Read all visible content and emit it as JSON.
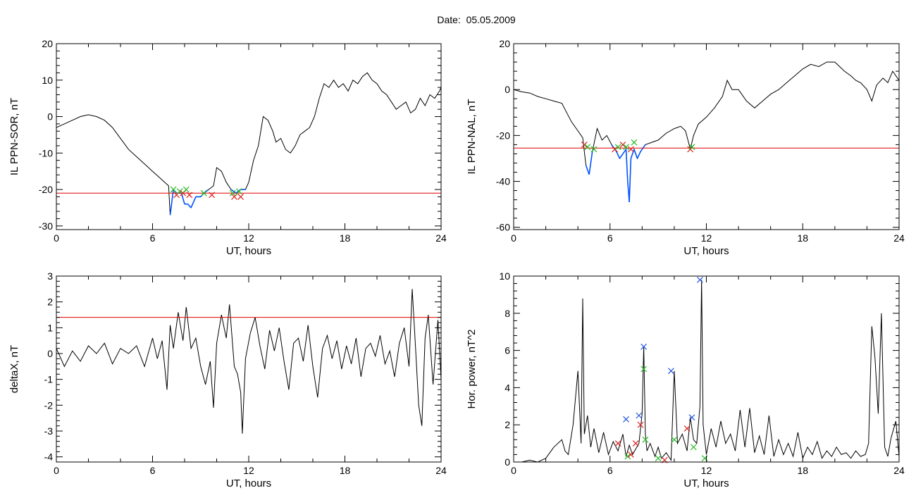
{
  "page_title": "Date:  05.05.2009",
  "colors": {
    "trace": "#000000",
    "highlight": "#0055ff",
    "threshold": "#e00000",
    "marker_green": "#22bb22",
    "marker_red": "#dd2222",
    "marker_blue": "#2255dd"
  },
  "chart_data": [
    {
      "id": "il-ppn-sor",
      "type": "line",
      "xlabel": "UT, hours",
      "ylabel": "IL PPN-SOR, nT",
      "xlim": [
        0,
        24
      ],
      "ylim": [
        -31,
        20
      ],
      "xticks": [
        0,
        6,
        12,
        18,
        24
      ],
      "yticks": [
        20,
        10,
        0,
        -10,
        -20,
        -30
      ],
      "threshold": -21,
      "highlight_below": -20,
      "series": [
        {
          "x": [
            0,
            0.5,
            1,
            1.5,
            2,
            2.5,
            3,
            3.5,
            4,
            4.5,
            5,
            5.5,
            6,
            6.5,
            7,
            7.1,
            7.3,
            7.5,
            7.8,
            8,
            8.2,
            8.4,
            8.7,
            9,
            9.2,
            9.5,
            9.8,
            10,
            10.3,
            10.6,
            10.9,
            11.2,
            11.5,
            11.8,
            12,
            12.3,
            12.6,
            12.9,
            13.2,
            13.5,
            13.7,
            14,
            14.3,
            14.6,
            14.9,
            15.2,
            15.5,
            15.8,
            16.1,
            16.4,
            16.7,
            17,
            17.3,
            17.6,
            17.9,
            18.2,
            18.5,
            18.8,
            19.1,
            19.4,
            19.7,
            20,
            20.3,
            20.6,
            20.9,
            21.2,
            21.5,
            21.8,
            22.1,
            22.4,
            22.7,
            23,
            23.3,
            23.6,
            23.9,
            24
          ],
          "y": [
            -3,
            -2,
            -1,
            0,
            0.5,
            0,
            -1,
            -3,
            -6,
            -9,
            -11,
            -13,
            -15,
            -17,
            -19,
            -27,
            -20,
            -21,
            -21,
            -24,
            -24,
            -25,
            -22,
            -22,
            -21,
            -20,
            -19,
            -14,
            -15,
            -18,
            -20,
            -21,
            -20,
            -20,
            -18,
            -12,
            -8,
            0,
            -1,
            -4,
            -7,
            -6,
            -9,
            -10,
            -8,
            -5,
            -4,
            -3,
            0,
            5,
            9,
            8,
            10,
            8,
            9,
            7,
            10,
            9,
            11,
            12,
            10,
            9,
            7,
            6,
            4,
            2,
            3,
            4,
            1,
            2,
            5,
            3,
            6,
            5,
            7,
            8
          ]
        }
      ],
      "markers": [
        {
          "x": 7.3,
          "y": -20,
          "color": "green"
        },
        {
          "x": 7.5,
          "y": -21.5,
          "color": "red"
        },
        {
          "x": 7.7,
          "y": -20.5,
          "color": "green"
        },
        {
          "x": 7.9,
          "y": -21,
          "color": "red"
        },
        {
          "x": 8.1,
          "y": -20,
          "color": "green"
        },
        {
          "x": 8.3,
          "y": -21.5,
          "color": "red"
        },
        {
          "x": 9.2,
          "y": -21,
          "color": "green"
        },
        {
          "x": 9.7,
          "y": -21.5,
          "color": "red"
        },
        {
          "x": 11.0,
          "y": -21,
          "color": "green"
        },
        {
          "x": 11.1,
          "y": -22,
          "color": "red"
        },
        {
          "x": 11.4,
          "y": -20.5,
          "color": "green"
        },
        {
          "x": 11.5,
          "y": -22,
          "color": "red"
        }
      ]
    },
    {
      "id": "il-ppn-nal",
      "type": "line",
      "xlabel": "UT, hours",
      "ylabel": "IL PPN-NAL, nT",
      "xlim": [
        0,
        24
      ],
      "ylim": [
        -61,
        20
      ],
      "xticks": [
        0,
        6,
        12,
        18,
        24
      ],
      "yticks": [
        20,
        0,
        -20,
        -40,
        -60
      ],
      "threshold": -25.5,
      "highlight_below": -24,
      "series": [
        {
          "x": [
            0,
            0.5,
            1,
            1.5,
            2,
            2.5,
            3,
            3.3,
            3.6,
            4,
            4.3,
            4.5,
            4.7,
            4.9,
            5.2,
            5.5,
            5.8,
            6.1,
            6.4,
            6.6,
            6.8,
            7,
            7.1,
            7.2,
            7.3,
            7.5,
            7.7,
            7.9,
            8.2,
            8.6,
            9,
            9.5,
            10,
            10.4,
            10.7,
            11,
            11.2,
            11.5,
            12,
            12.5,
            13,
            13.3,
            13.6,
            14,
            14.5,
            15,
            15.5,
            16,
            16.5,
            17,
            17.5,
            18,
            18.5,
            19,
            19.5,
            20,
            20.3,
            20.6,
            21,
            21.3,
            21.6,
            22,
            22.3,
            22.6,
            23,
            23.3,
            23.6,
            24
          ],
          "y": [
            0,
            -1,
            -1.5,
            -3,
            -4,
            -5,
            -6,
            -10,
            -14,
            -18,
            -21,
            -33,
            -37,
            -27,
            -17,
            -22,
            -20,
            -24,
            -27,
            -30,
            -28,
            -26,
            -40,
            -49,
            -30,
            -26,
            -30,
            -27,
            -24,
            -23,
            -22,
            -19,
            -17,
            -16,
            -18,
            -26,
            -20,
            -15,
            -12,
            -8,
            -3,
            4,
            0,
            0,
            -5,
            -8,
            -5,
            -2,
            0,
            3,
            6,
            9,
            11,
            10,
            12,
            12,
            10,
            8,
            6,
            4,
            3,
            0,
            -5,
            2,
            5,
            3,
            8,
            4
          ]
        }
      ],
      "markers": [
        {
          "x": 4.4,
          "y": -24,
          "color": "red"
        },
        {
          "x": 4.6,
          "y": -25,
          "color": "green"
        },
        {
          "x": 5.0,
          "y": -26,
          "color": "green"
        },
        {
          "x": 6.3,
          "y": -26,
          "color": "red"
        },
        {
          "x": 6.5,
          "y": -25,
          "color": "green"
        },
        {
          "x": 6.8,
          "y": -24,
          "color": "red"
        },
        {
          "x": 7.0,
          "y": -25,
          "color": "green"
        },
        {
          "x": 7.3,
          "y": -26,
          "color": "red"
        },
        {
          "x": 7.5,
          "y": -23,
          "color": "green"
        },
        {
          "x": 11.0,
          "y": -26,
          "color": "red"
        },
        {
          "x": 11.1,
          "y": -25,
          "color": "green"
        }
      ]
    },
    {
      "id": "delta-x",
      "type": "line",
      "xlabel": "UT, hours",
      "ylabel": "deltaX, nT",
      "xlim": [
        0,
        24
      ],
      "ylim": [
        -4.2,
        3
      ],
      "xticks": [
        0,
        6,
        12,
        18,
        24
      ],
      "yticks": [
        3,
        2,
        1,
        0,
        -1,
        -2,
        -3,
        -4
      ],
      "threshold": 1.4,
      "series": [
        {
          "x": [
            0,
            0.5,
            1,
            1.5,
            2,
            2.5,
            3,
            3.5,
            4,
            4.5,
            5,
            5.5,
            6,
            6.3,
            6.6,
            6.9,
            7.1,
            7.3,
            7.6,
            7.9,
            8.1,
            8.4,
            8.7,
            9,
            9.3,
            9.6,
            9.8,
            10,
            10.3,
            10.6,
            10.8,
            11.1,
            11.3,
            11.5,
            11.6,
            11.8,
            12.1,
            12.4,
            12.7,
            13,
            13.3,
            13.6,
            13.9,
            14.2,
            14.5,
            14.8,
            15.1,
            15.4,
            15.7,
            16,
            16.3,
            16.6,
            16.9,
            17.2,
            17.5,
            17.8,
            18.1,
            18.4,
            18.7,
            19,
            19.3,
            19.6,
            19.9,
            20.2,
            20.5,
            20.8,
            21.1,
            21.4,
            21.7,
            22,
            22.2,
            22.4,
            22.6,
            22.8,
            23,
            23.2,
            23.5,
            23.8,
            24
          ],
          "y": [
            0.2,
            -0.5,
            0.1,
            -0.3,
            0.3,
            0,
            0.4,
            -0.4,
            0.2,
            0,
            0.3,
            -0.5,
            0.6,
            -0.2,
            0.5,
            -1.4,
            1.1,
            0.2,
            1.6,
            0.5,
            1.8,
            0.2,
            0.6,
            -0.5,
            -1.2,
            -0.3,
            -2.1,
            0.4,
            1.5,
            0.6,
            1.9,
            -0.5,
            -0.8,
            -1.5,
            -3.1,
            -0.2,
            0.8,
            1.4,
            0.3,
            -0.6,
            0.9,
            0.1,
            1.0,
            -0.3,
            -1.4,
            0.4,
            0.6,
            -0.3,
            1.1,
            -0.5,
            -1.7,
            0.2,
            0.7,
            -0.2,
            0.5,
            -0.6,
            0.3,
            -0.4,
            0.6,
            -0.9,
            0.2,
            0.4,
            -0.1,
            0.7,
            -0.4,
            0.1,
            -0.9,
            0.4,
            1.0,
            -0.5,
            2.5,
            0.3,
            -2.0,
            -2.8,
            0.6,
            1.5,
            -1.2,
            1.3,
            -1.0
          ]
        }
      ]
    },
    {
      "id": "hor-power",
      "type": "line",
      "xlabel": "UT, hours",
      "ylabel": "Hor. power, nT^2",
      "xlim": [
        0,
        24
      ],
      "ylim": [
        0,
        10
      ],
      "xticks": [
        0,
        6,
        12,
        18,
        24
      ],
      "yticks": [
        10,
        8,
        6,
        4,
        2,
        0
      ],
      "series": [
        {
          "x": [
            0,
            0.5,
            1,
            1.5,
            2,
            2.5,
            3,
            3.2,
            3.4,
            3.7,
            4,
            4.2,
            4.3,
            4.4,
            4.6,
            4.8,
            5,
            5.3,
            5.6,
            5.9,
            6.2,
            6.5,
            6.8,
            7.0,
            7.2,
            7.4,
            7.6,
            7.8,
            8.0,
            8.1,
            8.2,
            8.3,
            8.5,
            8.8,
            9.0,
            9.2,
            9.5,
            9.8,
            10.0,
            10.2,
            10.5,
            10.8,
            11.0,
            11.2,
            11.4,
            11.6,
            11.7,
            11.8,
            12.0,
            12.3,
            12.6,
            12.9,
            13.2,
            13.5,
            13.8,
            14.1,
            14.4,
            14.7,
            15.0,
            15.3,
            15.6,
            15.9,
            16.2,
            16.5,
            16.8,
            17.1,
            17.4,
            17.7,
            18.0,
            18.3,
            18.6,
            18.9,
            19.2,
            19.5,
            19.8,
            20.1,
            20.4,
            20.7,
            21.0,
            21.3,
            21.6,
            21.9,
            22.1,
            22.3,
            22.5,
            22.7,
            22.9,
            23.1,
            23.3,
            23.5,
            23.8,
            24
          ],
          "y": [
            0,
            0,
            0.1,
            0,
            0.2,
            0.8,
            1.2,
            0.6,
            0.4,
            2.0,
            4.9,
            1.0,
            8.8,
            1.5,
            2.5,
            0.8,
            1.8,
            0.5,
            1.6,
            0.4,
            1.1,
            0.6,
            1.5,
            0.3,
            0.9,
            0.4,
            0.7,
            1.0,
            2.6,
            6.2,
            1.5,
            0.6,
            1.0,
            0.3,
            0.8,
            0.2,
            0.5,
            0.1,
            4.9,
            1.0,
            1.5,
            0.6,
            2.4,
            1.2,
            1.0,
            3.0,
            9.8,
            2.0,
            0.4,
            1.8,
            0.8,
            2.2,
            1.0,
            1.5,
            0.6,
            2.8,
            0.8,
            2.9,
            0.5,
            1.4,
            0.4,
            2.5,
            0.3,
            1.2,
            0.4,
            1.0,
            0.3,
            1.6,
            0.2,
            0.8,
            0.4,
            1.1,
            0.2,
            0.6,
            0.3,
            0.8,
            0.4,
            0.5,
            0.2,
            0.6,
            0.3,
            0.4,
            1.0,
            7.3,
            5.6,
            2.6,
            8.0,
            0.8,
            0.3,
            1.3,
            2.2,
            0.3
          ]
        }
      ],
      "markers": [
        {
          "x": 6.5,
          "y": 1.0,
          "color": "red"
        },
        {
          "x": 7.0,
          "y": 2.3,
          "color": "blue"
        },
        {
          "x": 7.1,
          "y": 0.3,
          "color": "green"
        },
        {
          "x": 7.3,
          "y": 0.4,
          "color": "red"
        },
        {
          "x": 7.6,
          "y": 1.0,
          "color": "red"
        },
        {
          "x": 7.8,
          "y": 2.5,
          "color": "blue"
        },
        {
          "x": 7.9,
          "y": 2.0,
          "color": "red"
        },
        {
          "x": 8.1,
          "y": 6.2,
          "color": "blue"
        },
        {
          "x": 8.1,
          "y": 5.0,
          "color": "green"
        },
        {
          "x": 8.2,
          "y": 1.2,
          "color": "green"
        },
        {
          "x": 9.0,
          "y": 0.2,
          "color": "green"
        },
        {
          "x": 9.4,
          "y": 0.1,
          "color": "red"
        },
        {
          "x": 9.8,
          "y": 4.9,
          "color": "blue"
        },
        {
          "x": 10.0,
          "y": 1.2,
          "color": "green"
        },
        {
          "x": 10.8,
          "y": 1.8,
          "color": "red"
        },
        {
          "x": 11.1,
          "y": 2.4,
          "color": "blue"
        },
        {
          "x": 11.2,
          "y": 0.8,
          "color": "green"
        },
        {
          "x": 11.6,
          "y": 9.8,
          "color": "blue"
        },
        {
          "x": 11.9,
          "y": 0.2,
          "color": "green"
        }
      ]
    }
  ]
}
